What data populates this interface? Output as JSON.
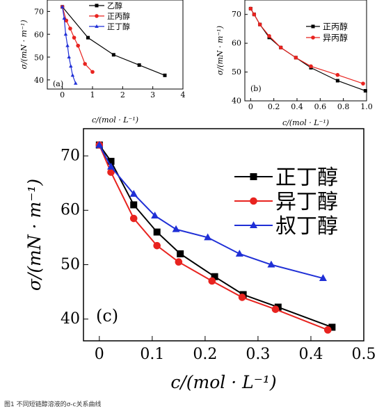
{
  "caption": "图1 不同短链醇溶液的σ-c关系曲线",
  "chart_data": [
    {
      "type": "line",
      "panel_label": "(a)",
      "xlabel": "c/(mol · L⁻¹)",
      "ylabel": "σ/(mN · m⁻¹)",
      "xlim": [
        -0.5,
        4
      ],
      "ylim": [
        36,
        75
      ],
      "xticks": [
        0,
        1,
        2,
        3,
        4
      ],
      "yticks": [
        40,
        50,
        60,
        70
      ],
      "legend_position": "top-center",
      "series": [
        {
          "name": "乙醇",
          "color": "#000000",
          "marker": "square",
          "x": [
            0,
            0.85,
            1.7,
            2.55,
            3.4
          ],
          "y": [
            72,
            58.5,
            51,
            46.5,
            42
          ]
        },
        {
          "name": "正丙醇",
          "color": "#e8231f",
          "marker": "circle",
          "x": [
            0,
            0.13,
            0.26,
            0.39,
            0.52,
            0.75,
            1.0
          ],
          "y": [
            72,
            66,
            62.5,
            58.5,
            55,
            47,
            43.5
          ]
        },
        {
          "name": "正丁醇",
          "color": "#1f2fd6",
          "marker": "triangle",
          "x": [
            0,
            0.06,
            0.11,
            0.17,
            0.22,
            0.28,
            0.34,
            0.44
          ],
          "y": [
            72,
            67,
            60,
            55,
            50,
            46,
            42,
            38.5
          ]
        }
      ]
    },
    {
      "type": "line",
      "panel_label": "(b)",
      "xlabel": "c/(mol · L⁻¹)",
      "ylabel": "σ/(mN · m⁻¹)",
      "xlim": [
        -0.05,
        1.0
      ],
      "ylim": [
        40,
        75
      ],
      "xticks": [
        0,
        0.2,
        0.4,
        0.6,
        0.8,
        1.0
      ],
      "xtick_labels": [
        "0",
        "0.2",
        "0.4",
        "0.6",
        "0.8",
        "1.0"
      ],
      "yticks": [
        40,
        50,
        60,
        70
      ],
      "legend_position": "top-right",
      "series": [
        {
          "name": "正丙醇",
          "color": "#000000",
          "marker": "square",
          "x": [
            0,
            0.03,
            0.08,
            0.16,
            0.26,
            0.39,
            0.52,
            0.75,
            0.99
          ],
          "y": [
            72,
            70,
            66.5,
            62,
            58.5,
            55,
            51.5,
            47,
            43.5
          ]
        },
        {
          "name": "异丙醇",
          "color": "#e8231f",
          "marker": "circle",
          "x": [
            0,
            0.03,
            0.08,
            0.16,
            0.26,
            0.39,
            0.52,
            0.75,
            0.97
          ],
          "y": [
            72,
            70,
            66.5,
            62.5,
            58.5,
            55,
            52,
            49,
            46
          ]
        }
      ]
    },
    {
      "type": "line",
      "panel_label": "(c)",
      "xlabel": "c/(mol · L⁻¹)",
      "ylabel": "σ/(mN · m⁻¹)",
      "xlim": [
        -0.03,
        0.5
      ],
      "ylim": [
        36,
        75
      ],
      "xticks": [
        0,
        0.1,
        0.2,
        0.3,
        0.4,
        0.5
      ],
      "xtick_labels": [
        "0",
        "0.1",
        "0.2",
        "0.3",
        "0.4",
        "0.5"
      ],
      "yticks": [
        40,
        50,
        60,
        70
      ],
      "legend_position": "top-right",
      "series": [
        {
          "name": "正丁醇",
          "color": "#000000",
          "marker": "square",
          "x": [
            0,
            0.022,
            0.065,
            0.109,
            0.153,
            0.218,
            0.272,
            0.338,
            0.44
          ],
          "y": [
            72,
            69,
            61,
            56,
            52,
            47.8,
            44.5,
            42.2,
            38.5
          ]
        },
        {
          "name": "异丁醇",
          "color": "#e8231f",
          "marker": "circle",
          "x": [
            0,
            0.022,
            0.065,
            0.109,
            0.15,
            0.213,
            0.27,
            0.333,
            0.432
          ],
          "y": [
            72,
            67,
            58.5,
            53.5,
            50.5,
            47,
            44,
            41.8,
            38
          ]
        },
        {
          "name": "叔丁醇",
          "color": "#1f2fd6",
          "marker": "triangle",
          "x": [
            0,
            0.022,
            0.065,
            0.105,
            0.145,
            0.205,
            0.265,
            0.325,
            0.423
          ],
          "y": [
            72,
            68,
            63,
            59,
            56.5,
            55,
            52,
            50,
            47.5
          ]
        }
      ]
    }
  ]
}
